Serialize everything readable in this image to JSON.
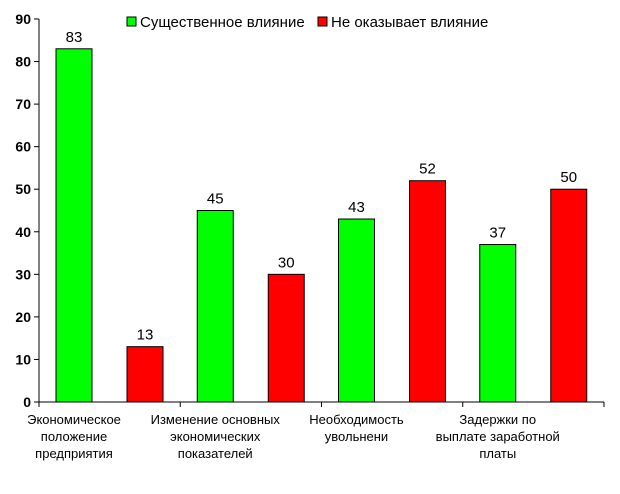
{
  "chart_data": {
    "type": "bar",
    "title": "",
    "xlabel": "",
    "ylabel": "",
    "ylim": [
      0,
      90
    ],
    "yticks": [
      0,
      10,
      20,
      30,
      40,
      50,
      60,
      70,
      80,
      90
    ],
    "grid": false,
    "legend_position": "top",
    "categories": [
      "Экономическое положение предприятия",
      "Изменение основных экономических показателей",
      "Необходимость увольнени",
      "Задержки по выплате заработной платы"
    ],
    "series": [
      {
        "name": "Существенное влияние",
        "color": "#00ff00",
        "values": [
          83,
          45,
          43,
          37
        ]
      },
      {
        "name": "Не оказывает влияние",
        "color": "#ff0000",
        "values": [
          13,
          30,
          52,
          50
        ]
      }
    ]
  }
}
